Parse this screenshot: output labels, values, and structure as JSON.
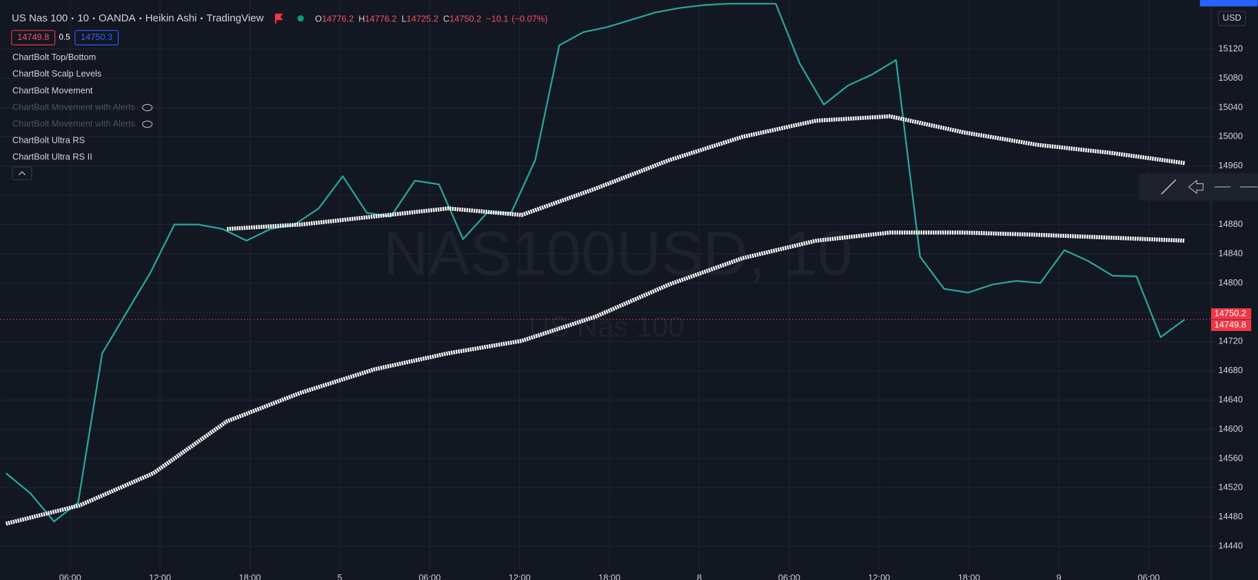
{
  "chart_data": {
    "type": "line",
    "header": {
      "symbol": "US Nas 100",
      "interval": "10",
      "exchange": "OANDA",
      "style": "Heikin Ashi",
      "source": "TradingView"
    },
    "ohlc": {
      "labels": [
        "O",
        "H",
        "L",
        "C"
      ],
      "values": [
        14776.2,
        14776.2,
        14725.2,
        14750.2
      ]
    },
    "change": {
      "value": -10.1,
      "label": "−10.1"
    },
    "change_pct": {
      "value": -0.07,
      "label": "(−0.07%)"
    },
    "bid": 14749.8,
    "spread": 0.5,
    "ask": 14750.3,
    "indicators": [
      "ChartBolt Top/Bottom",
      "ChartBolt Scalp Levels",
      "ChartBolt Movement",
      "ChartBolt Movement with Alerts",
      "ChartBolt Movement with Alerts",
      "ChartBolt Ultra RS",
      "ChartBolt Ultra RS II"
    ],
    "hidden_indicators": [
      false,
      false,
      false,
      true,
      true,
      false,
      false
    ],
    "watermark": "NAS100USD, 10",
    "watermark_sub": "US Nas 100",
    "currency": "USD",
    "time_labels": [
      "06:00",
      "12:00",
      "18:00",
      "5",
      "06:00",
      "12:00",
      "18:00",
      "8",
      "06:00",
      "12:00",
      "18:00",
      "9",
      "06:00"
    ],
    "ylim": [
      14394,
      15187
    ],
    "yticks": [
      14440,
      14480,
      14520,
      14560,
      14600,
      14640,
      14680,
      14720,
      14760,
      14800,
      14840,
      14880,
      14920,
      14960,
      15000,
      15040,
      15080,
      15120
    ],
    "price_labels": [
      14750.2,
      14749.8
    ],
    "last_price": 14750.2,
    "grid": true,
    "series": [
      {
        "name": "Close",
        "color": "#26a69a",
        "width": 2,
        "values": [
          14540,
          14513,
          14474,
          14500,
          14704,
          14759,
          14814,
          14880,
          14880,
          14874,
          14858,
          14874,
          14880,
          14902,
          14946,
          14896,
          14891,
          14940,
          14935,
          14860,
          14896,
          14896,
          14968,
          15125,
          15143,
          15150,
          15160,
          15170,
          15176,
          15180,
          15182,
          15182,
          15182,
          15100,
          15044,
          15070,
          15085,
          15105,
          14836,
          14792,
          14787,
          14798,
          14803,
          14800,
          14845,
          14830,
          14810,
          14809,
          14726,
          14750.2
        ]
      },
      {
        "name": "MA fast",
        "color": "#ffffff",
        "width": 5,
        "values": [
          null,
          null,
          null,
          14874,
          14880,
          14891,
          14902,
          14893,
          14929,
          14968,
          15000,
          15022,
          15028,
          15006,
          14989,
          14978,
          14964
        ]
      },
      {
        "name": "MA slow",
        "color": "#ffffff",
        "width": 5,
        "values": [
          14471,
          14496,
          14540,
          14611,
          14650,
          14682,
          14704,
          14721,
          14754,
          14798,
          14834,
          14858,
          14869,
          14869,
          14866,
          14862,
          14858
        ]
      }
    ]
  }
}
